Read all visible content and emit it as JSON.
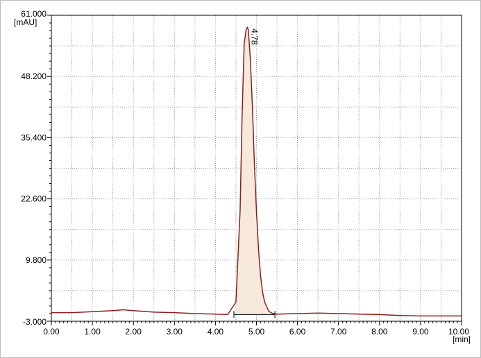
{
  "chart_data": {
    "type": "line",
    "title": "",
    "xlabel": "[min]",
    "ylabel": "[mAU]",
    "xlim": [
      0,
      10
    ],
    "ylim": [
      -3,
      61
    ],
    "grid": true,
    "x_ticks": [
      "0.00",
      "1.00",
      "2.00",
      "3.00",
      "4.00",
      "5.00",
      "6.00",
      "7.00",
      "8.00",
      "9.00",
      "10.00"
    ],
    "y_ticks": [
      {
        "value": -3.0,
        "label": "-3.000"
      },
      {
        "value": 9.8,
        "label": "9.800"
      },
      {
        "value": 22.6,
        "label": "22.600"
      },
      {
        "value": 35.4,
        "label": "35.400"
      },
      {
        "value": 48.2,
        "label": "48.200"
      },
      {
        "value": 61.0,
        "label": "61.000"
      }
    ],
    "series": [
      {
        "x": [
          0.0,
          0.5,
          1.0,
          1.5,
          1.75,
          2.0,
          2.5,
          3.0,
          3.5,
          4.0,
          4.3,
          4.5,
          4.6,
          4.65,
          4.7,
          4.75,
          4.78,
          4.8,
          4.85,
          4.9,
          4.95,
          5.0,
          5.05,
          5.1,
          5.15,
          5.2,
          5.3,
          5.4,
          5.5,
          6.0,
          6.5,
          7.0,
          7.5,
          8.0,
          8.5,
          9.0,
          9.5,
          10.0
        ],
        "y": [
          -1.2,
          -1.2,
          -1.0,
          -0.8,
          -0.6,
          -0.8,
          -1.1,
          -1.2,
          -1.4,
          -1.5,
          -1.6,
          1.0,
          20.0,
          40.0,
          55.0,
          58.0,
          58.5,
          58.0,
          52.0,
          42.0,
          30.0,
          20.0,
          12.0,
          6.5,
          3.0,
          1.0,
          -0.9,
          -1.4,
          -1.5,
          -1.4,
          -1.3,
          -1.4,
          -1.5,
          -1.6,
          -1.8,
          -1.9,
          -1.9,
          -1.9
        ]
      }
    ],
    "peak": {
      "rt": 4.78,
      "label": "4.78",
      "start": 4.45,
      "end": 5.45,
      "baseline_y": -1.6
    }
  }
}
